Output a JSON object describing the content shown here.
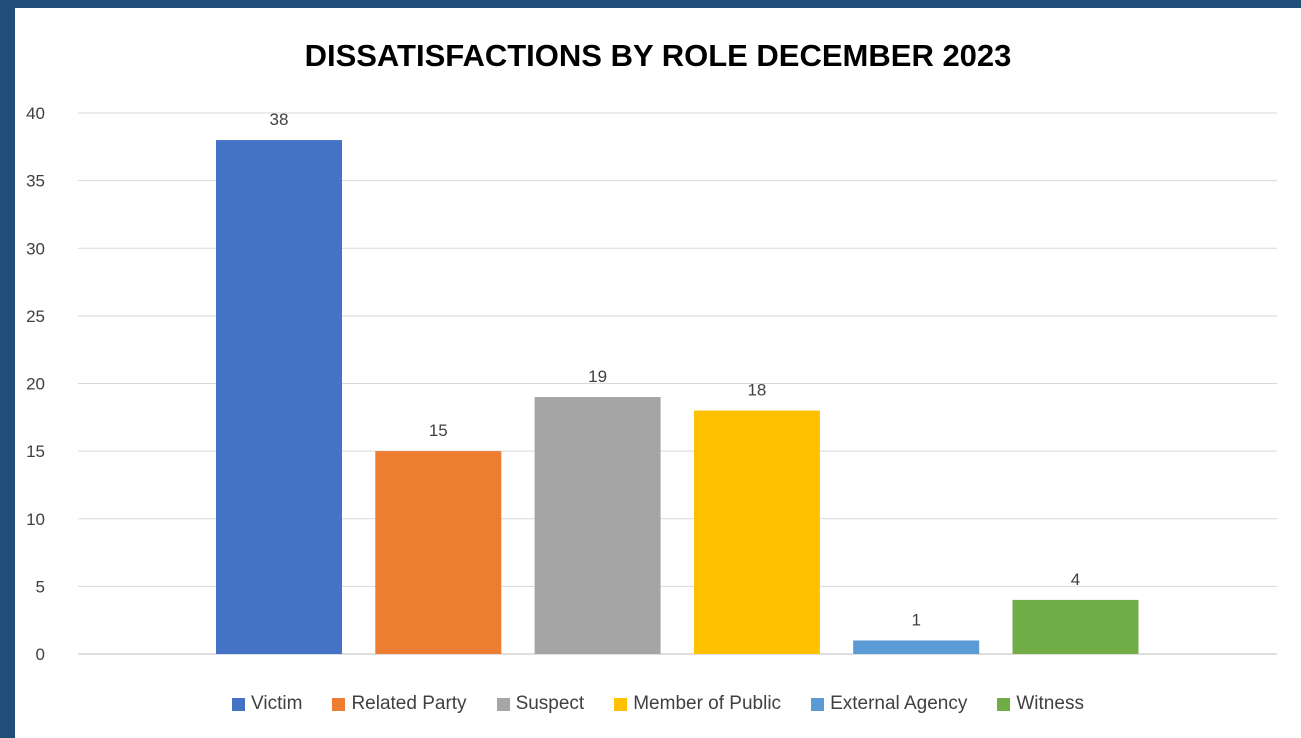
{
  "chart_data": {
    "type": "bar",
    "title": "DISSATISFACTIONS BY ROLE DECEMBER 2023",
    "xlabel": "",
    "ylabel": "",
    "ylim": [
      0,
      40
    ],
    "yticks": [
      0,
      5,
      10,
      15,
      20,
      25,
      30,
      35,
      40
    ],
    "grid": true,
    "legend_position": "bottom",
    "data_labels": true,
    "categories": [
      "Victim",
      "Related Party",
      "Suspect",
      "Member of Public",
      "External Agency",
      "Witness"
    ],
    "values": [
      38,
      15,
      19,
      18,
      1,
      4
    ],
    "colors": [
      "#4472c4",
      "#ed7d31",
      "#a5a5a5",
      "#ffc000",
      "#5b9bd5",
      "#70ad47"
    ]
  }
}
